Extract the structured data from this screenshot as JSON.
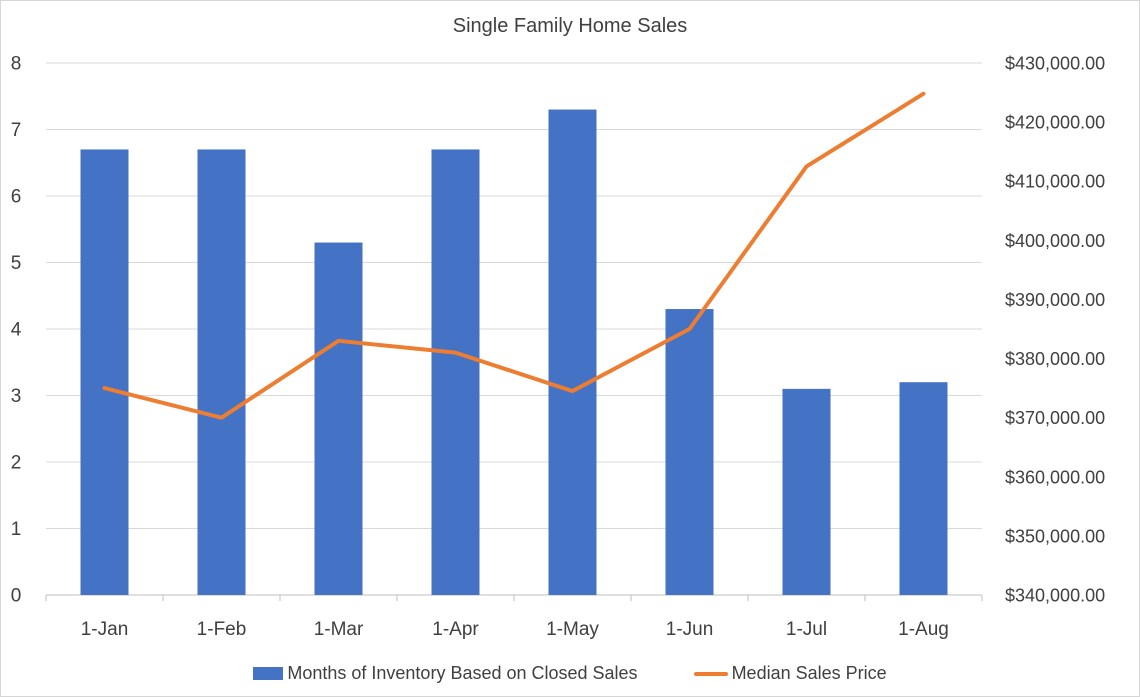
{
  "chart_data": {
    "type": "combo-bar-line",
    "title": "Single Family Home Sales",
    "categories": [
      "1-Jan",
      "1-Feb",
      "1-Mar",
      "1-Apr",
      "1-May",
      "1-Jun",
      "1-Jul",
      "1-Aug"
    ],
    "series": [
      {
        "name": "Months of Inventory Based on Closed Sales",
        "type": "bar",
        "axis": "left",
        "color": "#4472C4",
        "values": [
          6.7,
          6.7,
          5.3,
          6.7,
          7.3,
          4.3,
          3.1,
          3.2
        ]
      },
      {
        "name": "Median Sales Price",
        "type": "line",
        "axis": "right",
        "color": "#ED7D31",
        "values": [
          375000,
          370000,
          383000,
          381000,
          374500,
          385000,
          412500,
          424800
        ]
      }
    ],
    "left_axis": {
      "min": 0,
      "max": 8,
      "step": 1,
      "labels": [
        "0",
        "1",
        "2",
        "3",
        "4",
        "5",
        "6",
        "7",
        "8"
      ]
    },
    "right_axis": {
      "min": 340000,
      "max": 430000,
      "step": 10000,
      "labels": [
        "$340,000.00",
        "$350,000.00",
        "$360,000.00",
        "$370,000.00",
        "$380,000.00",
        "$390,000.00",
        "$400,000.00",
        "$410,000.00",
        "$420,000.00",
        "$430,000.00"
      ]
    },
    "grid": "horizontal",
    "legend_position": "bottom",
    "text_color": "#404040",
    "gridline_color": "#D9D9D9",
    "axis_line_color": "#BFBFBF"
  }
}
